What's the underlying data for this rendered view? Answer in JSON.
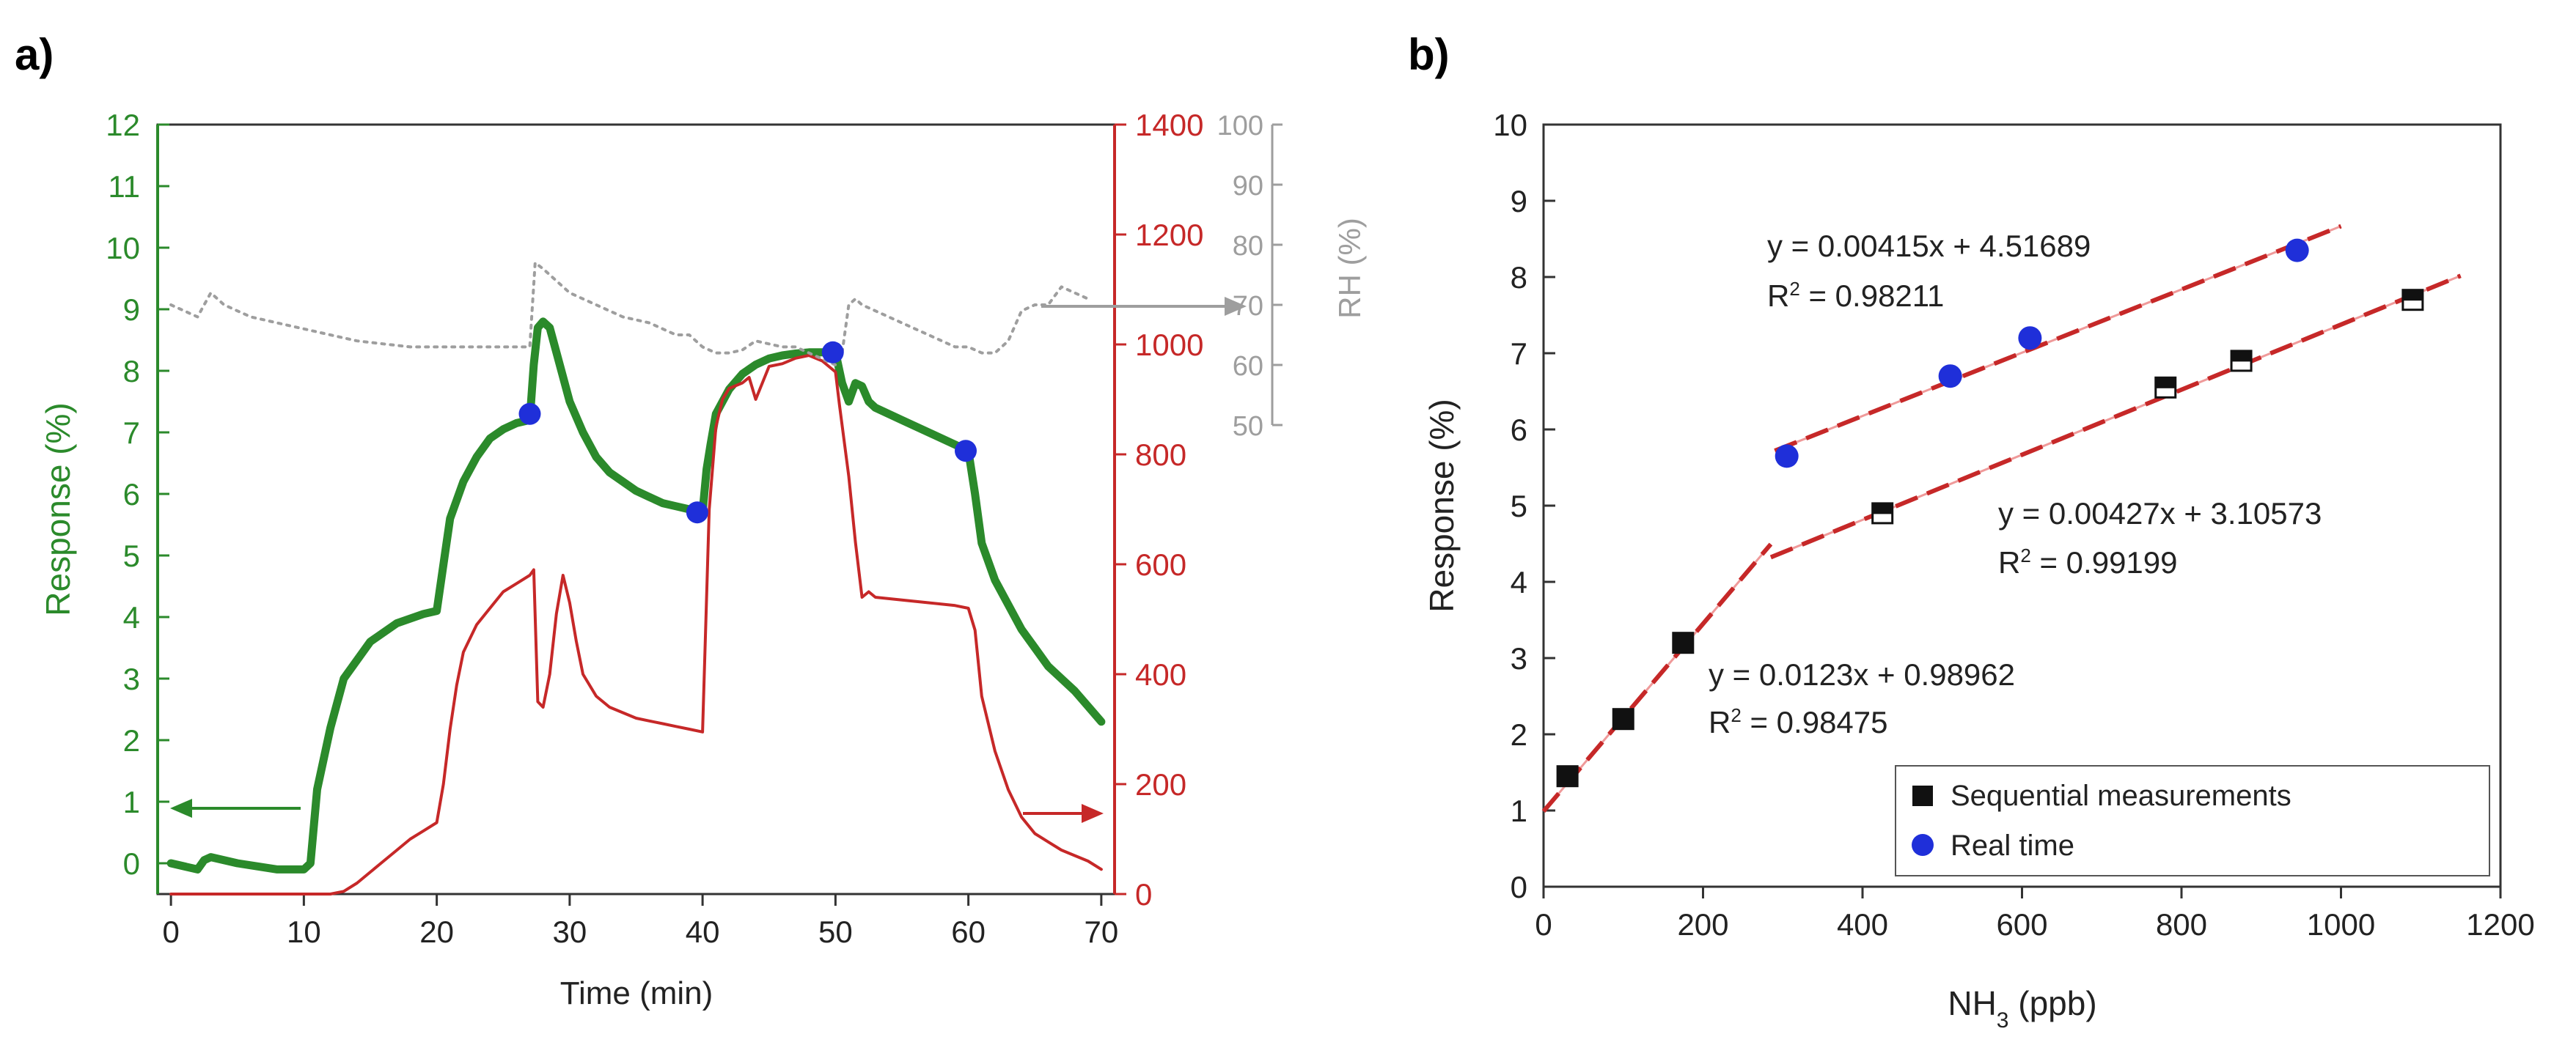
{
  "panels": {
    "a": {
      "label": "a)"
    },
    "b": {
      "label": "b)"
    }
  },
  "colors": {
    "response": "#2b8a2b",
    "ammonia": "#c62828",
    "rh": "#9e9e9e",
    "realtime_dot": "#1f2fd9",
    "fit": "#c62828",
    "fit_light": "#ef9a9a",
    "axis": "#333333"
  },
  "chart_data": [
    {
      "type": "line",
      "panel": "a",
      "xlabel": "Time (min)",
      "ylabel": "Response (%)",
      "y2label": "",
      "y3label": "RH (%)",
      "xlim": [
        -1,
        71
      ],
      "xticks": [
        0,
        10,
        20,
        30,
        40,
        50,
        60,
        70
      ],
      "ylim": [
        -0.5,
        12
      ],
      "yticks": [
        0,
        1,
        2,
        3,
        4,
        5,
        6,
        7,
        8,
        9,
        10,
        11,
        12
      ],
      "y2lim": [
        0,
        1400
      ],
      "y2ticks": [
        0,
        200,
        400,
        600,
        800,
        1000,
        1200,
        1400
      ],
      "y3lim": [
        50,
        100
      ],
      "y3ticks": [
        50,
        60,
        70,
        80,
        90,
        100
      ],
      "grid": false,
      "series": [
        {
          "key": "response",
          "axis": "left",
          "style": "thick",
          "x": [
            0,
            2,
            2.5,
            3,
            5,
            8,
            10,
            10.5,
            11,
            12,
            13,
            15,
            17,
            19,
            20,
            20.6,
            21,
            22,
            23,
            24,
            25,
            26,
            27,
            27.3,
            27.6,
            28,
            28.5,
            29,
            30,
            31,
            32,
            33,
            34,
            35,
            36,
            37,
            38,
            39,
            40,
            40.3,
            40.6,
            41,
            42,
            43,
            44,
            45,
            46,
            47,
            48,
            49,
            50,
            50.5,
            51,
            51.5,
            52,
            52.5,
            53,
            55,
            57,
            59,
            60,
            60.5,
            61,
            62,
            63,
            64,
            65,
            66,
            67,
            68,
            69,
            70
          ],
          "y": [
            0,
            -0.1,
            0.05,
            0.1,
            0,
            -0.1,
            -0.1,
            0,
            1.2,
            2.2,
            3.0,
            3.6,
            3.9,
            4.05,
            4.1,
            5.0,
            5.6,
            6.2,
            6.6,
            6.9,
            7.05,
            7.15,
            7.2,
            8.1,
            8.7,
            8.8,
            8.7,
            8.3,
            7.5,
            7.0,
            6.6,
            6.35,
            6.2,
            6.05,
            5.95,
            5.85,
            5.8,
            5.75,
            5.7,
            6.4,
            6.8,
            7.3,
            7.7,
            7.95,
            8.1,
            8.2,
            8.25,
            8.28,
            8.3,
            8.3,
            8.3,
            7.8,
            7.5,
            7.8,
            7.75,
            7.5,
            7.4,
            7.2,
            7.0,
            6.8,
            6.7,
            6.0,
            5.2,
            4.6,
            4.2,
            3.8,
            3.5,
            3.2,
            3.0,
            2.8,
            2.55,
            2.3
          ]
        },
        {
          "key": "ammonia",
          "axis": "right",
          "style": "thin",
          "x": [
            0,
            10,
            11,
            12,
            13,
            14,
            15,
            16,
            17,
            18,
            19,
            20,
            20.5,
            21,
            21.5,
            22,
            23,
            24,
            25,
            26,
            27,
            27.3,
            27.6,
            28,
            28.5,
            29,
            29.5,
            30,
            30.5,
            31,
            32,
            33,
            34,
            35,
            36,
            37,
            38,
            39,
            40,
            40.5,
            41,
            41.5,
            42,
            43,
            43.5,
            44,
            44.5,
            45,
            46,
            47,
            48,
            49,
            50,
            50.3,
            51,
            51.5,
            52,
            52.5,
            53,
            55,
            57,
            59,
            60,
            60.5,
            61,
            62,
            63,
            64,
            65,
            66,
            67,
            68,
            69,
            70
          ],
          "y": [
            0,
            0,
            0,
            0,
            5,
            20,
            40,
            60,
            80,
            100,
            115,
            130,
            200,
            300,
            380,
            440,
            490,
            520,
            550,
            565,
            580,
            590,
            350,
            340,
            400,
            510,
            580,
            530,
            460,
            400,
            360,
            340,
            330,
            320,
            315,
            310,
            305,
            300,
            295,
            700,
            850,
            900,
            920,
            930,
            940,
            900,
            930,
            960,
            965,
            975,
            980,
            970,
            950,
            890,
            760,
            640,
            540,
            550,
            540,
            535,
            530,
            525,
            520,
            480,
            360,
            260,
            190,
            140,
            110,
            95,
            80,
            70,
            60,
            45
          ]
        },
        {
          "key": "rh",
          "axis": "rh",
          "style": "dotted",
          "x": [
            0,
            1,
            2,
            2.5,
            3,
            4,
            6,
            8,
            10,
            12,
            14,
            16,
            18,
            20,
            22,
            24,
            26,
            27,
            27.4,
            28,
            29,
            30,
            31,
            32,
            33,
            34,
            35,
            36,
            37,
            38,
            39,
            40,
            41,
            42,
            43,
            44,
            45,
            46,
            47,
            48,
            49,
            50,
            50.5,
            51,
            51.5,
            52,
            53,
            54,
            55,
            56,
            57,
            58,
            59,
            60,
            61,
            62,
            63,
            64,
            65,
            66,
            67,
            68,
            69
          ],
          "y": [
            70,
            69,
            68,
            70,
            72,
            70,
            68,
            67,
            66,
            65,
            64,
            63.5,
            63,
            63,
            63,
            63,
            63,
            63,
            77,
            76,
            74,
            72,
            71,
            70,
            69,
            68,
            67.5,
            67,
            66,
            65,
            65,
            63,
            62,
            62,
            62.5,
            64,
            63.5,
            63,
            63,
            62,
            61,
            60,
            62,
            70,
            71,
            70,
            69,
            68,
            67,
            66,
            65,
            64,
            63,
            63,
            62,
            62,
            64,
            69,
            70,
            70,
            73,
            72,
            71
          ]
        },
        {
          "key": "realtime_points",
          "axis": "left",
          "style": "dots",
          "x": [
            27,
            39.6,
            49.8,
            59.8
          ],
          "y": [
            7.3,
            5.7,
            8.3,
            6.7
          ]
        }
      ]
    },
    {
      "type": "scatter",
      "panel": "b",
      "xlabel": "NH",
      "xlabel_sub": "3",
      "xlabel_tail": " (ppb)",
      "ylabel": "Response (%)",
      "xlim": [
        0,
        1200
      ],
      "xticks": [
        0,
        200,
        400,
        600,
        800,
        1000,
        1200
      ],
      "ylim": [
        0,
        10
      ],
      "yticks": [
        0,
        1,
        2,
        3,
        4,
        5,
        6,
        7,
        8,
        9,
        10
      ],
      "grid": false,
      "legend_position": "bottom-right",
      "series": [
        {
          "name": "Sequential measurements",
          "marker": "square",
          "x": [
            30,
            100,
            175,
            425,
            780,
            875,
            1090
          ],
          "y": [
            1.45,
            2.2,
            3.2,
            4.9,
            6.55,
            6.9,
            7.7
          ]
        },
        {
          "name": "Real time",
          "marker": "circle",
          "x": [
            305,
            510,
            610,
            945
          ],
          "y": [
            5.65,
            6.7,
            7.2,
            8.35
          ]
        }
      ],
      "fits": [
        {
          "equation": "y = 0.0123x + 0.98962",
          "r2_prefix": "R",
          "r2_sup": "2",
          "r2_value": " = 0.98475",
          "slope": 0.0123,
          "intercept": 0.98962,
          "x_range": [
            0,
            285
          ]
        },
        {
          "equation": "y = 0.00415x + 4.51689",
          "r2_prefix": "R",
          "r2_sup": "2",
          "r2_value": " = 0.98211",
          "slope": 0.00415,
          "intercept": 4.51689,
          "x_range": [
            290,
            1000
          ]
        },
        {
          "equation": "y = 0.00427x + 3.10573",
          "r2_prefix": "R",
          "r2_sup": "2",
          "r2_value": " = 0.99199",
          "slope": 0.00427,
          "intercept": 3.10573,
          "x_range": [
            285,
            1150
          ]
        }
      ]
    }
  ]
}
